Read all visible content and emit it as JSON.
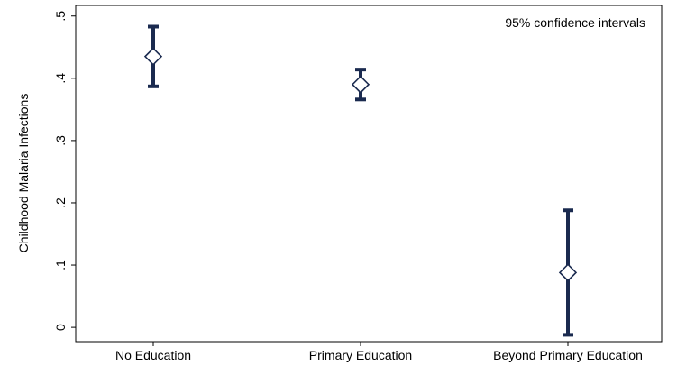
{
  "chart_data": {
    "type": "scatter",
    "categories": [
      "No Education",
      "Primary Education",
      "Beyond Primary Education"
    ],
    "series": [
      {
        "estimates": [
          0.435,
          0.39,
          0.088
        ],
        "lower": [
          0.387,
          0.366,
          -0.012
        ],
        "upper": [
          0.483,
          0.414,
          0.188
        ]
      }
    ],
    "ylabel": "Childhood Malaria Infections",
    "ylim": [
      -0.023,
      0.517
    ],
    "yticks": [
      0,
      0.1,
      0.2,
      0.3,
      0.4,
      0.5
    ],
    "ytick_labels": [
      "0",
      ".1",
      ".2",
      ".3",
      ".4",
      ".5"
    ],
    "annotation": "95% confidence intervals",
    "grid": false,
    "colors": {
      "series": "#1a2a4f",
      "frame": "#000000",
      "background": "#ffffff"
    }
  }
}
